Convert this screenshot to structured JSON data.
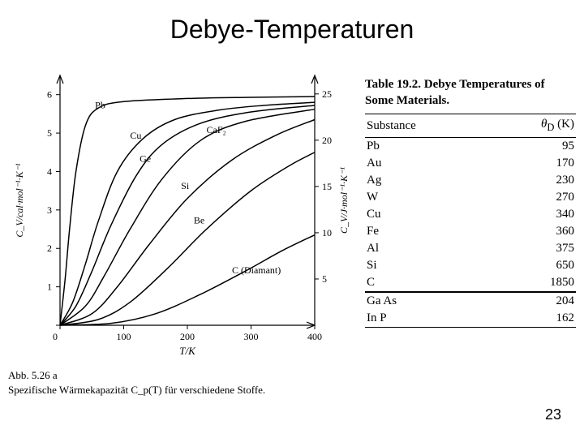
{
  "title": "Debye-Temperaturen",
  "page_number": "23",
  "table": {
    "caption": "Table 19.2. Debye Temperatures of Some Materials.",
    "col_substance": "Substance",
    "col_theta": "θ_D (K)",
    "rows_main": [
      {
        "s": "Pb",
        "v": "95"
      },
      {
        "s": "Au",
        "v": "170"
      },
      {
        "s": "Ag",
        "v": "230"
      },
      {
        "s": "W",
        "v": "270"
      },
      {
        "s": "Cu",
        "v": "340"
      },
      {
        "s": "Fe",
        "v": "360"
      },
      {
        "s": "Al",
        "v": "375"
      },
      {
        "s": "Si",
        "v": "650"
      },
      {
        "s": "C",
        "v": "1850"
      }
    ],
    "rows_extra": [
      {
        "s": "Ga As",
        "v": "204"
      },
      {
        "s": "In P",
        "v": "162"
      }
    ]
  },
  "chart": {
    "fig_label": "Abb. 5.26 a",
    "fig_desc": "Spezifische Wärmekapazität C_p(T) für verschiedene Stoffe.",
    "xlabel": "T/K",
    "ylabel_left": "C_V/cal·mol⁻¹·K⁻¹",
    "ylabel_right": "C_V/J·mol⁻¹·K⁻¹",
    "xlim": [
      0,
      400
    ],
    "ylim_left": [
      0,
      6.5
    ],
    "ylim_right": [
      0,
      27
    ],
    "xticks": [
      0,
      100,
      200,
      300,
      400
    ],
    "yticks_left": [
      0,
      1,
      2,
      3,
      4,
      5,
      6
    ],
    "yticks_right": [
      5,
      10,
      15,
      20,
      25
    ],
    "background_color": "#ffffff",
    "axis_color": "#000000",
    "line_color": "#000000",
    "line_width": 1.5,
    "font_family_axes": "Times New Roman",
    "axis_fontsize": 12,
    "series": [
      {
        "label": "Pb",
        "label_xy": [
          55,
          5.65
        ],
        "pts": [
          [
            0,
            0
          ],
          [
            8,
            1.2
          ],
          [
            15,
            2.5
          ],
          [
            25,
            4.0
          ],
          [
            40,
            5.2
          ],
          [
            60,
            5.65
          ],
          [
            100,
            5.82
          ],
          [
            200,
            5.9
          ],
          [
            300,
            5.93
          ],
          [
            400,
            5.95
          ]
        ]
      },
      {
        "label": "Cu",
        "label_xy": [
          110,
          4.85
        ],
        "pts": [
          [
            0,
            0
          ],
          [
            20,
            0.6
          ],
          [
            40,
            1.6
          ],
          [
            60,
            2.7
          ],
          [
            90,
            4.0
          ],
          [
            130,
            4.85
          ],
          [
            180,
            5.35
          ],
          [
            250,
            5.6
          ],
          [
            320,
            5.72
          ],
          [
            400,
            5.8
          ]
        ]
      },
      {
        "label": "Ge",
        "label_xy": [
          125,
          4.25
        ],
        "pts": [
          [
            0,
            0
          ],
          [
            25,
            0.5
          ],
          [
            50,
            1.4
          ],
          [
            80,
            2.6
          ],
          [
            120,
            3.9
          ],
          [
            160,
            4.7
          ],
          [
            220,
            5.25
          ],
          [
            300,
            5.55
          ],
          [
            400,
            5.72
          ]
        ]
      },
      {
        "label": "CaF₂",
        "label_xy": [
          230,
          5.0
        ],
        "pts": [
          [
            0,
            0
          ],
          [
            40,
            0.5
          ],
          [
            70,
            1.3
          ],
          [
            110,
            2.5
          ],
          [
            160,
            3.8
          ],
          [
            220,
            4.8
          ],
          [
            290,
            5.3
          ],
          [
            400,
            5.62
          ]
        ]
      },
      {
        "label": "Si",
        "label_xy": [
          190,
          3.55
        ],
        "pts": [
          [
            0,
            0
          ],
          [
            50,
            0.3
          ],
          [
            90,
            1.0
          ],
          [
            140,
            2.1
          ],
          [
            200,
            3.3
          ],
          [
            270,
            4.3
          ],
          [
            340,
            4.95
          ],
          [
            400,
            5.35
          ]
        ]
      },
      {
        "label": "Be",
        "label_xy": [
          210,
          2.65
        ],
        "pts": [
          [
            0,
            0
          ],
          [
            60,
            0.15
          ],
          [
            110,
            0.6
          ],
          [
            170,
            1.5
          ],
          [
            230,
            2.5
          ],
          [
            300,
            3.5
          ],
          [
            360,
            4.15
          ],
          [
            400,
            4.5
          ]
        ]
      },
      {
        "label": "C (Diamant)",
        "label_xy": [
          270,
          1.35
        ],
        "pts": [
          [
            0,
            0
          ],
          [
            80,
            0.05
          ],
          [
            150,
            0.3
          ],
          [
            220,
            0.8
          ],
          [
            290,
            1.4
          ],
          [
            350,
            1.95
          ],
          [
            400,
            2.35
          ]
        ]
      }
    ]
  }
}
